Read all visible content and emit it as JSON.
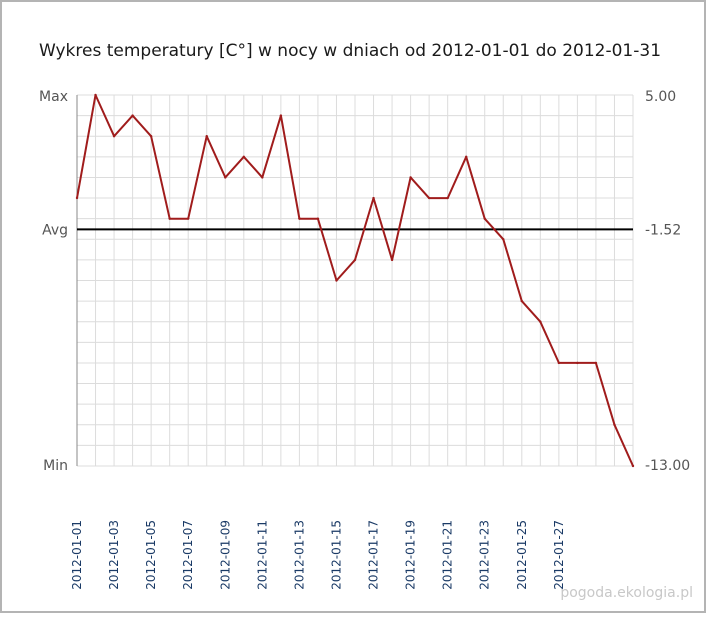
{
  "chart_data": {
    "type": "line",
    "title": "Wykres temperatury [C°] w nocy w dniach od 2012-01-01 do 2012-01-31",
    "left_labels": {
      "max": "Max",
      "avg": "Avg",
      "min": "Min"
    },
    "right_labels": {
      "max": "5.00",
      "avg": "-1.52",
      "min": "-13.00"
    },
    "ylim": [
      -13.0,
      5.0
    ],
    "avg_value": -1.52,
    "x_tick_labels": [
      "2012-01-01",
      "2012-01-03",
      "2012-01-05",
      "2012-01-07",
      "2012-01-09",
      "2012-01-11",
      "2012-01-13",
      "2012-01-15",
      "2012-01-17",
      "2012-01-19",
      "2012-01-21",
      "2012-01-23",
      "2012-01-25",
      "2012-01-27"
    ],
    "x": [
      "2012-01-01",
      "2012-01-02",
      "2012-01-03",
      "2012-01-04",
      "2012-01-05",
      "2012-01-06",
      "2012-01-07",
      "2012-01-08",
      "2012-01-09",
      "2012-01-10",
      "2012-01-11",
      "2012-01-12",
      "2012-01-13",
      "2012-01-14",
      "2012-01-15",
      "2012-01-16",
      "2012-01-17",
      "2012-01-18",
      "2012-01-19",
      "2012-01-20",
      "2012-01-21",
      "2012-01-22",
      "2012-01-23",
      "2012-01-24",
      "2012-01-25",
      "2012-01-26",
      "2012-01-27",
      "2012-01-28",
      "2012-01-29",
      "2012-01-30",
      "2012-01-31"
    ],
    "series": [
      {
        "values": [
          0,
          5,
          3,
          4,
          3,
          -1,
          -1,
          3,
          1,
          2,
          1,
          4,
          -1,
          -1,
          -4,
          -3,
          0,
          -3,
          1,
          0,
          0,
          2,
          -1,
          -2,
          -5,
          -6,
          -8,
          -8,
          -8,
          -11,
          -13
        ],
        "color": "#a01c1c"
      }
    ],
    "grid": true,
    "avg_line_color": "#000000"
  },
  "watermark": "pogoda.ekologia.pl"
}
